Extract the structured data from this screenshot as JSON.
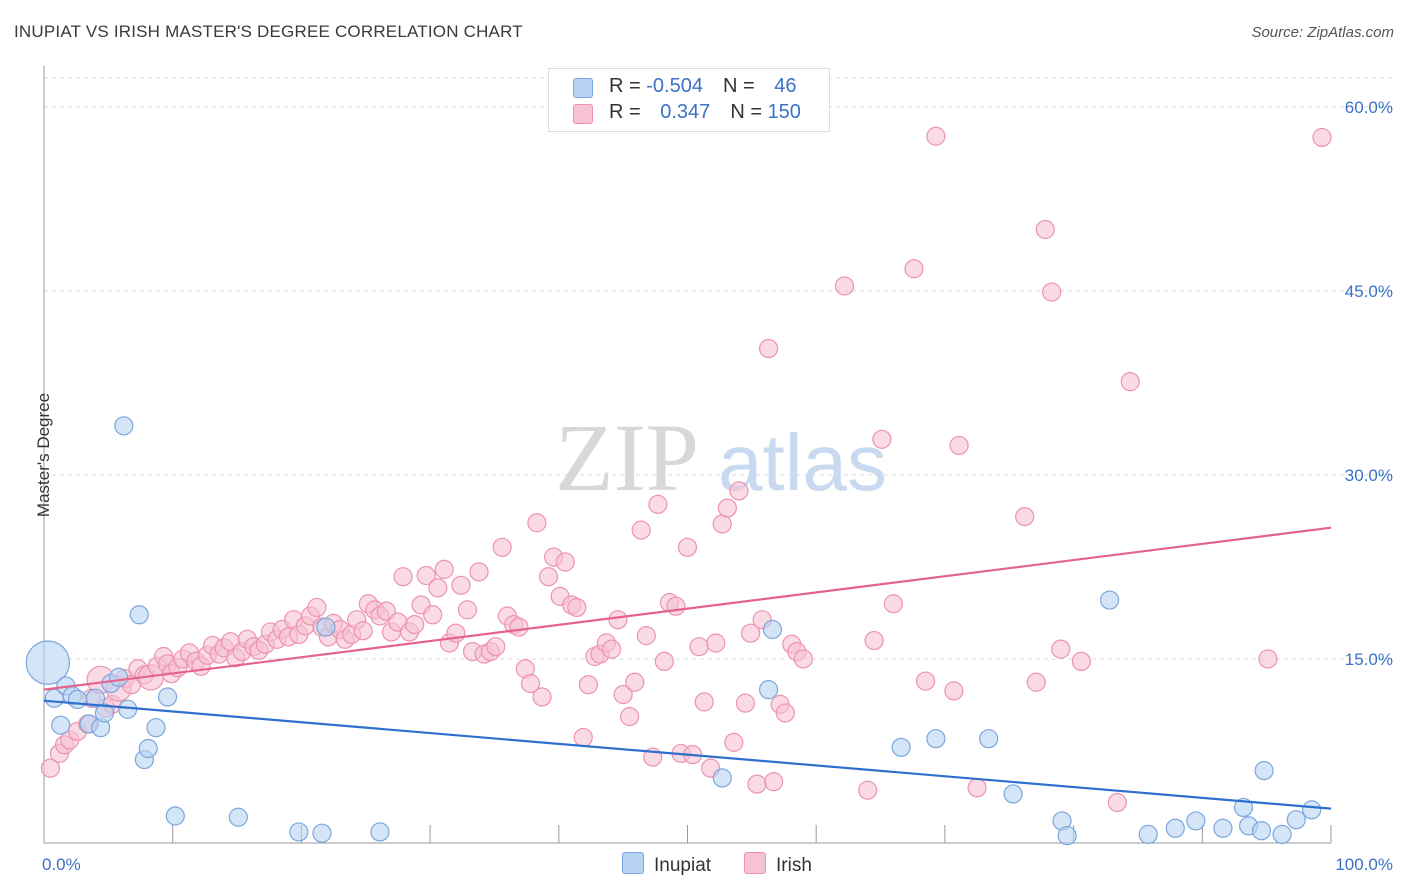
{
  "title": "INUPIAT VS IRISH MASTER'S DEGREE CORRELATION CHART",
  "source": "Source: ZipAtlas.com",
  "watermark": {
    "zip": "ZIP",
    "atlas": "atlas"
  },
  "colors": {
    "inupiat_fill": "#b8d3f2",
    "inupiat_stroke": "#7ba6dd",
    "inupiat_line": "#2f6fce",
    "irish_fill": "#f7c2d2",
    "irish_stroke": "#ec93b0",
    "irish_line": "#e4638e",
    "tick_label": "#3a72c8"
  },
  "legend": {
    "rows": [
      {
        "r_label": "R = ",
        "r_value": "-0.504",
        "n_label": "N = ",
        "n_value": "46"
      },
      {
        "r_label": "R = ",
        "r_value": "0.347",
        "n_label": "N = ",
        "n_value": "150"
      }
    ]
  },
  "bottom_legend": [
    "Inupiat",
    "Irish"
  ],
  "chart_data": {
    "type": "scatter",
    "title": "INUPIAT VS IRISH MASTER'S DEGREE CORRELATION CHART",
    "ylabel": "Master's Degree",
    "xlim": [
      0,
      100
    ],
    "ylim": [
      0,
      63
    ],
    "x_tick_labels": [
      {
        "value": 0,
        "label": "0.0%"
      },
      {
        "value": 100,
        "label": "100.0%"
      }
    ],
    "y_tick_labels": [
      {
        "value": 15,
        "label": "15.0%"
      },
      {
        "value": 30,
        "label": "30.0%"
      },
      {
        "value": 45,
        "label": "45.0%"
      },
      {
        "value": 60,
        "label": "60.0%"
      }
    ],
    "grid": true,
    "series": [
      {
        "name": "Inupiat",
        "r": -0.504,
        "n": 46,
        "trend": {
          "x0": 0,
          "y0": 11.6,
          "x1": 100,
          "y1": 2.8
        },
        "points": [
          {
            "x": 0.3,
            "y": 14.7,
            "s": 2.4
          },
          {
            "x": 0.8,
            "y": 11.8
          },
          {
            "x": 1.3,
            "y": 9.6
          },
          {
            "x": 1.7,
            "y": 12.8
          },
          {
            "x": 2.2,
            "y": 12.0
          },
          {
            "x": 2.6,
            "y": 11.7
          },
          {
            "x": 3.5,
            "y": 9.7
          },
          {
            "x": 4.0,
            "y": 11.8
          },
          {
            "x": 4.4,
            "y": 9.4
          },
          {
            "x": 4.7,
            "y": 10.6
          },
          {
            "x": 5.2,
            "y": 13.0
          },
          {
            "x": 5.8,
            "y": 13.5
          },
          {
            "x": 6.2,
            "y": 34.0
          },
          {
            "x": 6.5,
            "y": 10.9
          },
          {
            "x": 7.4,
            "y": 18.6
          },
          {
            "x": 7.8,
            "y": 6.8
          },
          {
            "x": 8.1,
            "y": 7.7
          },
          {
            "x": 8.7,
            "y": 9.4
          },
          {
            "x": 9.6,
            "y": 11.9
          },
          {
            "x": 10.2,
            "y": 2.2
          },
          {
            "x": 15.1,
            "y": 2.1
          },
          {
            "x": 19.8,
            "y": 0.9
          },
          {
            "x": 21.6,
            "y": 0.8
          },
          {
            "x": 21.9,
            "y": 17.6
          },
          {
            "x": 26.1,
            "y": 0.9
          },
          {
            "x": 52.7,
            "y": 5.3
          },
          {
            "x": 56.3,
            "y": 12.5
          },
          {
            "x": 56.6,
            "y": 17.4
          },
          {
            "x": 66.6,
            "y": 7.8
          },
          {
            "x": 69.3,
            "y": 8.5
          },
          {
            "x": 73.4,
            "y": 8.5
          },
          {
            "x": 75.3,
            "y": 4.0
          },
          {
            "x": 79.1,
            "y": 1.8
          },
          {
            "x": 79.5,
            "y": 0.6
          },
          {
            "x": 82.8,
            "y": 19.8
          },
          {
            "x": 85.8,
            "y": 0.7
          },
          {
            "x": 87.9,
            "y": 1.2
          },
          {
            "x": 89.5,
            "y": 1.8
          },
          {
            "x": 91.6,
            "y": 1.2
          },
          {
            "x": 93.2,
            "y": 2.9
          },
          {
            "x": 93.6,
            "y": 1.4
          },
          {
            "x": 94.6,
            "y": 1.0
          },
          {
            "x": 94.8,
            "y": 5.9
          },
          {
            "x": 96.2,
            "y": 0.7
          },
          {
            "x": 97.3,
            "y": 1.9
          },
          {
            "x": 98.5,
            "y": 2.7
          }
        ]
      },
      {
        "name": "Irish",
        "r": 0.347,
        "n": 150,
        "trend": {
          "x0": 0,
          "y0": 12.5,
          "x1": 100,
          "y1": 25.7
        },
        "points": [
          {
            "x": 0.5,
            "y": 6.1
          },
          {
            "x": 1.2,
            "y": 7.3
          },
          {
            "x": 1.6,
            "y": 8.0
          },
          {
            "x": 2.0,
            "y": 8.4
          },
          {
            "x": 2.6,
            "y": 9.1
          },
          {
            "x": 3.4,
            "y": 9.7
          },
          {
            "x": 3.7,
            "y": 11.8
          },
          {
            "x": 4.4,
            "y": 13.3,
            "s": 1.5
          },
          {
            "x": 4.8,
            "y": 11.0
          },
          {
            "x": 5.3,
            "y": 11.3
          },
          {
            "x": 5.8,
            "y": 12.6,
            "s": 1.4
          },
          {
            "x": 6.3,
            "y": 13.4
          },
          {
            "x": 6.8,
            "y": 12.9
          },
          {
            "x": 7.3,
            "y": 14.2
          },
          {
            "x": 7.8,
            "y": 13.7
          },
          {
            "x": 8.3,
            "y": 13.5,
            "s": 1.4
          },
          {
            "x": 8.8,
            "y": 14.4
          },
          {
            "x": 9.3,
            "y": 15.2
          },
          {
            "x": 9.6,
            "y": 14.6
          },
          {
            "x": 9.9,
            "y": 13.8
          },
          {
            "x": 10.4,
            "y": 14.3
          },
          {
            "x": 10.8,
            "y": 15.0
          },
          {
            "x": 11.3,
            "y": 15.5
          },
          {
            "x": 11.8,
            "y": 14.8
          },
          {
            "x": 12.2,
            "y": 14.4
          },
          {
            "x": 12.7,
            "y": 15.3
          },
          {
            "x": 13.1,
            "y": 16.1
          },
          {
            "x": 13.6,
            "y": 15.4
          },
          {
            "x": 14.0,
            "y": 15.9
          },
          {
            "x": 14.5,
            "y": 16.4
          },
          {
            "x": 14.9,
            "y": 15.1
          },
          {
            "x": 15.4,
            "y": 15.6
          },
          {
            "x": 15.8,
            "y": 16.6
          },
          {
            "x": 16.3,
            "y": 16.0
          },
          {
            "x": 16.7,
            "y": 15.7
          },
          {
            "x": 17.2,
            "y": 16.2
          },
          {
            "x": 17.6,
            "y": 17.2
          },
          {
            "x": 18.1,
            "y": 16.6
          },
          {
            "x": 18.5,
            "y": 17.4
          },
          {
            "x": 19.0,
            "y": 16.8
          },
          {
            "x": 19.4,
            "y": 18.2
          },
          {
            "x": 19.8,
            "y": 17.0
          },
          {
            "x": 20.3,
            "y": 17.7
          },
          {
            "x": 20.7,
            "y": 18.5
          },
          {
            "x": 21.2,
            "y": 19.2
          },
          {
            "x": 21.6,
            "y": 17.6
          },
          {
            "x": 22.1,
            "y": 16.8
          },
          {
            "x": 22.5,
            "y": 17.9
          },
          {
            "x": 23.0,
            "y": 17.4
          },
          {
            "x": 23.4,
            "y": 16.6
          },
          {
            "x": 23.9,
            "y": 17.0
          },
          {
            "x": 24.3,
            "y": 18.2
          },
          {
            "x": 24.8,
            "y": 17.3
          },
          {
            "x": 25.2,
            "y": 19.5
          },
          {
            "x": 25.7,
            "y": 19.0
          },
          {
            "x": 26.1,
            "y": 18.5
          },
          {
            "x": 26.6,
            "y": 18.9
          },
          {
            "x": 27.0,
            "y": 17.2
          },
          {
            "x": 27.5,
            "y": 18.0
          },
          {
            "x": 27.9,
            "y": 21.7
          },
          {
            "x": 28.4,
            "y": 17.2
          },
          {
            "x": 28.8,
            "y": 17.8
          },
          {
            "x": 29.3,
            "y": 19.4
          },
          {
            "x": 29.7,
            "y": 21.8
          },
          {
            "x": 30.2,
            "y": 18.6
          },
          {
            "x": 30.6,
            "y": 20.8
          },
          {
            "x": 31.1,
            "y": 22.3
          },
          {
            "x": 31.5,
            "y": 16.3
          },
          {
            "x": 32.0,
            "y": 17.1
          },
          {
            "x": 32.4,
            "y": 21.0
          },
          {
            "x": 32.9,
            "y": 19.0
          },
          {
            "x": 33.3,
            "y": 15.6
          },
          {
            "x": 33.8,
            "y": 22.1
          },
          {
            "x": 34.2,
            "y": 15.4
          },
          {
            "x": 34.7,
            "y": 15.6
          },
          {
            "x": 35.1,
            "y": 16.0
          },
          {
            "x": 35.6,
            "y": 24.1
          },
          {
            "x": 36.0,
            "y": 18.5
          },
          {
            "x": 36.5,
            "y": 17.8
          },
          {
            "x": 36.9,
            "y": 17.6
          },
          {
            "x": 37.4,
            "y": 14.2
          },
          {
            "x": 37.8,
            "y": 13.0
          },
          {
            "x": 38.3,
            "y": 26.1
          },
          {
            "x": 38.7,
            "y": 11.9
          },
          {
            "x": 39.2,
            "y": 21.7
          },
          {
            "x": 39.6,
            "y": 23.3
          },
          {
            "x": 40.1,
            "y": 20.1
          },
          {
            "x": 40.5,
            "y": 22.9
          },
          {
            "x": 41.0,
            "y": 19.4
          },
          {
            "x": 41.4,
            "y": 19.2
          },
          {
            "x": 41.9,
            "y": 8.6
          },
          {
            "x": 42.3,
            "y": 12.9
          },
          {
            "x": 42.8,
            "y": 15.2
          },
          {
            "x": 43.2,
            "y": 15.4
          },
          {
            "x": 43.7,
            "y": 16.3
          },
          {
            "x": 44.1,
            "y": 15.8
          },
          {
            "x": 44.6,
            "y": 18.2
          },
          {
            "x": 45.0,
            "y": 12.1
          },
          {
            "x": 45.5,
            "y": 10.3
          },
          {
            "x": 45.9,
            "y": 13.1
          },
          {
            "x": 46.4,
            "y": 25.5
          },
          {
            "x": 46.8,
            "y": 16.9
          },
          {
            "x": 47.3,
            "y": 7.0
          },
          {
            "x": 47.7,
            "y": 27.6
          },
          {
            "x": 48.2,
            "y": 14.8
          },
          {
            "x": 48.6,
            "y": 19.6
          },
          {
            "x": 49.1,
            "y": 19.3
          },
          {
            "x": 49.5,
            "y": 7.3
          },
          {
            "x": 50.0,
            "y": 24.1
          },
          {
            "x": 50.4,
            "y": 7.2
          },
          {
            "x": 50.9,
            "y": 16.0
          },
          {
            "x": 51.3,
            "y": 11.5
          },
          {
            "x": 51.8,
            "y": 6.1
          },
          {
            "x": 52.2,
            "y": 16.3
          },
          {
            "x": 52.7,
            "y": 26.0
          },
          {
            "x": 53.1,
            "y": 27.3
          },
          {
            "x": 53.6,
            "y": 8.2
          },
          {
            "x": 54.0,
            "y": 28.7
          },
          {
            "x": 54.5,
            "y": 11.4
          },
          {
            "x": 54.9,
            "y": 17.1
          },
          {
            "x": 55.4,
            "y": 4.8
          },
          {
            "x": 55.8,
            "y": 18.2
          },
          {
            "x": 56.3,
            "y": 40.3
          },
          {
            "x": 56.7,
            "y": 5.0
          },
          {
            "x": 57.2,
            "y": 11.3
          },
          {
            "x": 57.6,
            "y": 10.6
          },
          {
            "x": 58.1,
            "y": 16.2
          },
          {
            "x": 58.5,
            "y": 15.6
          },
          {
            "x": 59.0,
            "y": 15.0
          },
          {
            "x": 62.2,
            "y": 45.4
          },
          {
            "x": 64.0,
            "y": 4.3
          },
          {
            "x": 64.5,
            "y": 16.5
          },
          {
            "x": 65.1,
            "y": 32.9
          },
          {
            "x": 66.0,
            "y": 19.5
          },
          {
            "x": 67.6,
            "y": 46.8
          },
          {
            "x": 68.5,
            "y": 13.2
          },
          {
            "x": 69.3,
            "y": 57.6
          },
          {
            "x": 70.7,
            "y": 12.4
          },
          {
            "x": 71.1,
            "y": 32.4
          },
          {
            "x": 72.5,
            "y": 4.5
          },
          {
            "x": 76.2,
            "y": 26.6
          },
          {
            "x": 77.1,
            "y": 13.1
          },
          {
            "x": 77.8,
            "y": 50.0
          },
          {
            "x": 78.3,
            "y": 44.9
          },
          {
            "x": 79.0,
            "y": 15.8
          },
          {
            "x": 80.6,
            "y": 14.8
          },
          {
            "x": 83.4,
            "y": 3.3
          },
          {
            "x": 84.4,
            "y": 37.6
          },
          {
            "x": 95.1,
            "y": 15.0
          },
          {
            "x": 99.3,
            "y": 57.5
          }
        ]
      }
    ]
  }
}
